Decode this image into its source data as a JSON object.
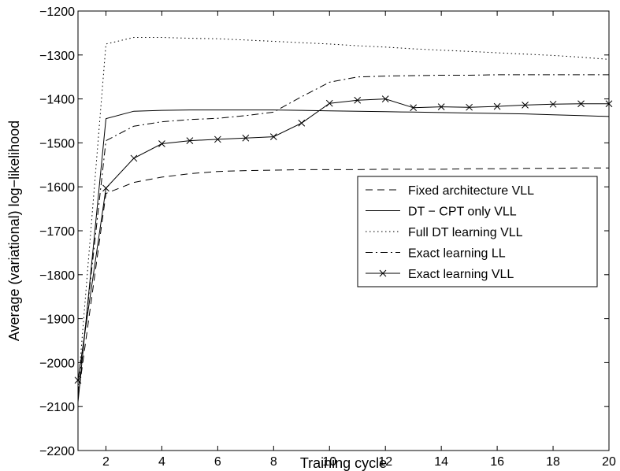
{
  "chart_data": {
    "type": "line",
    "title": "",
    "xlabel": "Training cycle",
    "ylabel": "Average (variational) log−likelihood",
    "xlim": [
      1,
      20
    ],
    "ylim": [
      -2200,
      -1200
    ],
    "xticks": [
      2,
      4,
      6,
      8,
      10,
      12,
      14,
      16,
      18,
      20
    ],
    "xtick_labels": [
      "2",
      "4",
      "6",
      "8",
      "10",
      "12",
      "14",
      "16",
      "18",
      "20"
    ],
    "yticks": [
      -2200,
      -2100,
      -2000,
      -1900,
      -1800,
      -1700,
      -1600,
      -1500,
      -1400,
      -1300,
      -1200
    ],
    "ytick_labels": [
      "−2200",
      "−2100",
      "−2000",
      "−1900",
      "−1800",
      "−1700",
      "−1600",
      "−1500",
      "−1400",
      "−1300",
      "−1200"
    ],
    "grid": false,
    "legend_position": "center-right",
    "x": [
      1,
      2,
      3,
      4,
      5,
      6,
      7,
      8,
      9,
      10,
      11,
      12,
      13,
      14,
      15,
      16,
      17,
      18,
      19,
      20
    ],
    "series": [
      {
        "name": "Fixed architecture VLL",
        "style": "dashed",
        "marker": "none",
        "color": "#000000",
        "values": [
          -2080,
          -1615,
          -1590,
          -1578,
          -1570,
          -1565,
          -1563,
          -1562,
          -1561,
          -1561,
          -1561,
          -1560,
          -1560,
          -1560,
          -1559,
          -1559,
          -1558,
          -1558,
          -1557,
          -1557
        ]
      },
      {
        "name": "DT − CPT only VLL",
        "style": "solid",
        "marker": "none",
        "color": "#000000",
        "values": [
          -2090,
          -1445,
          -1428,
          -1426,
          -1425,
          -1425,
          -1425,
          -1425,
          -1426,
          -1427,
          -1428,
          -1429,
          -1430,
          -1431,
          -1432,
          -1433,
          -1434,
          -1436,
          -1438,
          -1440
        ]
      },
      {
        "name": "Full DT learning VLL",
        "style": "dotted",
        "marker": "none",
        "color": "#000000",
        "values": [
          -2060,
          -1275,
          -1260,
          -1260,
          -1262,
          -1263,
          -1266,
          -1269,
          -1272,
          -1275,
          -1279,
          -1282,
          -1286,
          -1289,
          -1292,
          -1295,
          -1298,
          -1301,
          -1305,
          -1310
        ]
      },
      {
        "name": "Exact learning LL",
        "style": "dashdot",
        "marker": "none",
        "color": "#000000",
        "values": [
          -2070,
          -1495,
          -1462,
          -1452,
          -1447,
          -1444,
          -1438,
          -1430,
          -1395,
          -1362,
          -1350,
          -1348,
          -1347,
          -1346,
          -1346,
          -1345,
          -1345,
          -1345,
          -1345,
          -1345
        ]
      },
      {
        "name": "Exact learning VLL",
        "style": "solid",
        "marker": "x",
        "color": "#000000",
        "values": [
          -2040,
          -1603,
          -1535,
          -1502,
          -1495,
          -1492,
          -1489,
          -1486,
          -1455,
          -1410,
          -1403,
          -1400,
          -1420,
          -1418,
          -1419,
          -1417,
          -1414,
          -1412,
          -1411,
          -1411
        ]
      }
    ]
  }
}
